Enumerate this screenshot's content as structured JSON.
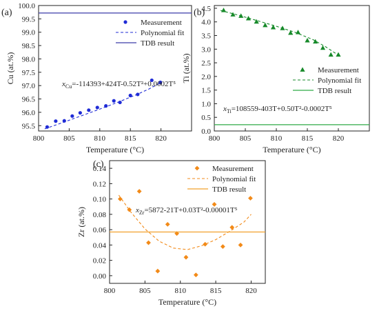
{
  "chart_data": [
    {
      "id": "a",
      "panel_label": "(a)",
      "type": "scatter",
      "xlabel": "Temperature  (°C)",
      "ylabel": "Cu (at.%)",
      "xlim": [
        800,
        825
      ],
      "ylim": [
        95.3,
        100.0
      ],
      "xticks": [
        800,
        805,
        810,
        815,
        820
      ],
      "yticks": [
        95.5,
        96.0,
        96.5,
        97.0,
        97.5,
        98.0,
        98.5,
        99.0,
        99.5,
        100.0
      ],
      "ytick_decimals": 1,
      "colors": {
        "marker": "#1f2bd6",
        "fit": "#1f2bd6",
        "tdb": "#3a3aa8"
      },
      "marker": "circle",
      "series": [
        {
          "name": "Measurement",
          "kind": "points",
          "x": [
            801.4,
            802.8,
            804.2,
            805.5,
            806.8,
            808.2,
            809.6,
            811.0,
            812.3,
            813.3,
            815.0,
            816.2,
            818.5,
            819.9
          ],
          "y": [
            95.45,
            95.67,
            95.68,
            95.86,
            95.98,
            96.08,
            96.18,
            96.24,
            96.43,
            96.37,
            96.63,
            96.67,
            97.2,
            97.12
          ]
        },
        {
          "name": "Polynomial fit",
          "kind": "dashed-line",
          "x": [
            801,
            804,
            807,
            810,
            813,
            816,
            818,
            820
          ],
          "y": [
            95.38,
            95.62,
            95.87,
            96.12,
            96.38,
            96.66,
            96.87,
            97.11
          ]
        },
        {
          "name": "TDB result",
          "kind": "hline",
          "y": 99.72
        }
      ],
      "legend": {
        "position": "top-right",
        "entries": [
          "Measurement",
          "Polynomial fit",
          "TDB result"
        ]
      },
      "annotation": {
        "prefix": "x",
        "sub": "Cu",
        "text": "=-114393+424T-0.52T²+0.0002T⁵"
      }
    },
    {
      "id": "b",
      "panel_label": "(b)",
      "type": "scatter",
      "xlabel": "Temperature  (°C)",
      "ylabel": "Ti (at.%)",
      "xlim": [
        800,
        825
      ],
      "ylim": [
        0,
        4.6
      ],
      "xticks": [
        800,
        805,
        810,
        815,
        820
      ],
      "yticks": [
        0.0,
        0.5,
        1.0,
        1.5,
        2.0,
        2.5,
        3.0,
        3.5,
        4.0,
        4.5
      ],
      "ytick_decimals": 1,
      "colors": {
        "marker": "#178a2a",
        "fit": "#178a2a",
        "tdb": "#2eaa46"
      },
      "marker": "triangle",
      "series": [
        {
          "name": "Measurement",
          "kind": "points",
          "x": [
            801.5,
            803.0,
            804.3,
            805.5,
            806.8,
            808.2,
            809.5,
            811.0,
            812.3,
            813.5,
            815.0,
            816.3,
            817.5,
            818.8,
            820.0
          ],
          "y": [
            4.43,
            4.27,
            4.22,
            4.13,
            4.01,
            3.88,
            3.8,
            3.77,
            3.6,
            3.62,
            3.32,
            3.28,
            3.05,
            2.8,
            2.8
          ]
        },
        {
          "name": "Polynomial fit",
          "kind": "dashed-line",
          "x": [
            801,
            804,
            807,
            810,
            813,
            816,
            818,
            820
          ],
          "y": [
            4.42,
            4.24,
            4.04,
            3.84,
            3.62,
            3.34,
            3.08,
            2.78
          ]
        },
        {
          "name": "TDB result",
          "kind": "hline",
          "y": 0.23
        }
      ],
      "legend": {
        "position": "right",
        "entries": [
          "Measurement",
          "Polynomial fit",
          "TDB result"
        ]
      },
      "annotation": {
        "prefix": "x",
        "sub": "Ti",
        "text": "=108559-403T+0.50T²-0.0002T⁵"
      }
    },
    {
      "id": "c",
      "panel_label": "(c)",
      "type": "scatter",
      "xlabel": "Temperature  (°C)",
      "ylabel": "Zr (at.%)",
      "xlim": [
        800,
        822
      ],
      "ylim": [
        -0.01,
        0.15
      ],
      "xticks": [
        800,
        805,
        810,
        815,
        820
      ],
      "yticks": [
        0.0,
        0.02,
        0.04,
        0.06,
        0.08,
        0.1,
        0.12,
        0.14
      ],
      "ytick_decimals": 2,
      "colors": {
        "marker": "#f28a18",
        "fit": "#f28a18",
        "tdb": "#f2a02a"
      },
      "marker": "diamond",
      "series": [
        {
          "name": "Measurement",
          "kind": "points",
          "x": [
            801.5,
            802.8,
            804.2,
            805.5,
            806.8,
            808.2,
            809.5,
            810.8,
            812.2,
            813.5,
            814.8,
            816.0,
            817.3,
            818.5,
            819.9
          ],
          "y": [
            0.1,
            0.086,
            0.11,
            0.043,
            0.006,
            0.067,
            0.055,
            0.024,
            0.001,
            0.041,
            0.093,
            0.038,
            0.063,
            0.04,
            0.101
          ]
        },
        {
          "name": "Polynomial fit",
          "kind": "dashed-line",
          "x": [
            801.3,
            803,
            805,
            807,
            809,
            811,
            813,
            815,
            817,
            819,
            820
          ],
          "y": [
            0.105,
            0.083,
            0.061,
            0.045,
            0.036,
            0.034,
            0.039,
            0.047,
            0.058,
            0.07,
            0.08
          ]
        },
        {
          "name": "TDB result",
          "kind": "hline",
          "y": 0.057
        }
      ],
      "legend": {
        "position": "top-right",
        "entries": [
          "Measurement",
          "Polynomial fit",
          "TDB result"
        ]
      },
      "annotation": {
        "prefix": "x",
        "sub": "Zr",
        "text": "=5872-21T+0.03T²-0.00001T⁵"
      }
    }
  ]
}
